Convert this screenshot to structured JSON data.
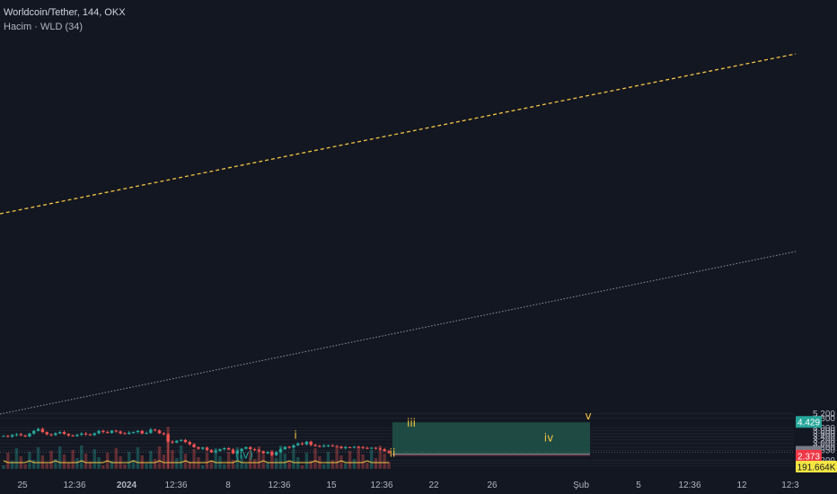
{
  "header": {
    "title": "Worldcoin/Tether, 144, OKX",
    "volume_label": "Hacim · WLD (34)"
  },
  "colors": {
    "background": "#131722",
    "up": "#26a69a",
    "down": "#ef5350",
    "target_zone": "#1f4d46",
    "stop_zone": "#4a2230",
    "channel_upper": "#f5c542",
    "channel_lower": "#9598a1",
    "wave_yellow": "#f5c542",
    "wave_teal": "#26a69a"
  },
  "chart_data": {
    "type": "candlestick",
    "y_axis": {
      "scale": "log",
      "range": [
        1.92,
        5.25
      ],
      "ticks": [
        "5.200",
        "4.800",
        "4.000",
        "3.800",
        "3.600",
        "3.400",
        "3.200",
        "3.000",
        "2.800",
        "2.650",
        "2.200",
        "2.080",
        "1.980"
      ]
    },
    "x_axis": {
      "ticks": [
        "25",
        "12:36",
        "2024",
        "12:36",
        "8",
        "12:36",
        "15",
        "12:36",
        "22",
        "26",
        "Şub",
        "5",
        "12:36",
        "12",
        "12:3"
      ]
    },
    "price_badges": [
      {
        "value": "4.429",
        "color": "#26a69a"
      },
      {
        "value": "2.551",
        "color": "#787b86"
      },
      {
        "value": "55:15",
        "color": "#787b86"
      },
      {
        "value": "2.457",
        "color": "#787b86"
      },
      {
        "value": "2.373",
        "color": "#f23645"
      },
      {
        "value": "191.664K",
        "color": "#f5e642"
      }
    ],
    "wave_labels": [
      {
        "text": "i",
        "price": 3.26,
        "color": "yellow"
      },
      {
        "text": "ii",
        "price": 2.34,
        "color": "yellow"
      },
      {
        "text": "iii",
        "price": 4.08,
        "color": "yellow"
      },
      {
        "text": "iv",
        "price": 3.12,
        "color": "yellow"
      },
      {
        "text": "v",
        "price": 4.68,
        "color": "yellow"
      },
      {
        "text": "(iv)",
        "price": 2.27,
        "color": "teal"
      }
    ],
    "position": {
      "type": "long",
      "entry": 2.457,
      "target": 4.429,
      "stop": 2.373
    },
    "price_path": [
      3.45,
      3.4,
      3.5,
      3.55,
      3.48,
      3.42,
      3.6,
      3.78,
      3.92,
      3.7,
      3.55,
      3.5,
      3.62,
      3.7,
      3.58,
      3.48,
      3.44,
      3.52,
      3.6,
      3.55,
      3.5,
      3.62,
      3.78,
      3.7,
      3.65,
      3.8,
      3.74,
      3.62,
      3.58,
      3.66,
      3.7,
      3.78,
      3.6,
      3.65,
      3.88,
      3.82,
      3.62,
      3.55,
      3.1,
      3.05,
      3.15,
      3.2,
      3.08,
      2.95,
      2.8,
      2.72,
      2.78,
      2.65,
      2.55,
      2.62,
      2.7,
      2.75,
      2.68,
      2.5,
      2.6,
      2.72,
      2.8,
      2.7,
      2.65,
      2.6,
      2.5,
      2.56,
      2.42,
      2.55,
      2.7,
      2.82,
      2.78,
      2.9,
      3.0,
      2.95,
      3.1,
      2.92,
      2.86,
      2.84,
      2.88,
      2.9,
      2.86,
      2.82,
      2.75,
      2.8,
      2.78,
      2.82,
      2.8,
      2.76,
      2.74,
      2.77,
      2.73,
      2.7,
      2.6,
      2.52
    ],
    "volume_label": "191.664K"
  }
}
